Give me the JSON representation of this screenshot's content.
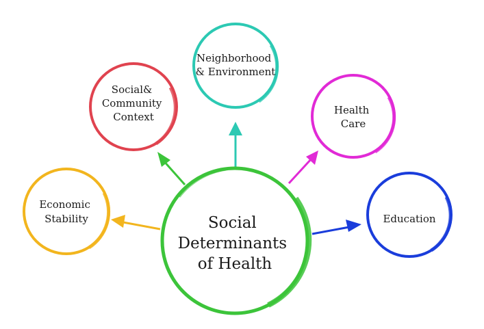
{
  "center": {
    "lines": [
      "Social",
      "Determinants",
      "of Health"
    ],
    "color": "#3cc43a"
  },
  "nodes": [
    {
      "id": "social-community",
      "lines": [
        "Social&",
        "Community",
        "Context"
      ],
      "color": "#e0434f"
    },
    {
      "id": "neighborhood",
      "lines": [
        "Neighborhood",
        "& Environment"
      ],
      "color": "#2cc9b3"
    },
    {
      "id": "health-care",
      "lines": [
        "Health",
        "Care"
      ],
      "color": "#e12ad6"
    },
    {
      "id": "economic",
      "lines": [
        "Economic",
        "Stability"
      ],
      "color": "#f2b51e"
    },
    {
      "id": "education",
      "lines": [
        "Education"
      ],
      "color": "#1a3ddb"
    }
  ]
}
